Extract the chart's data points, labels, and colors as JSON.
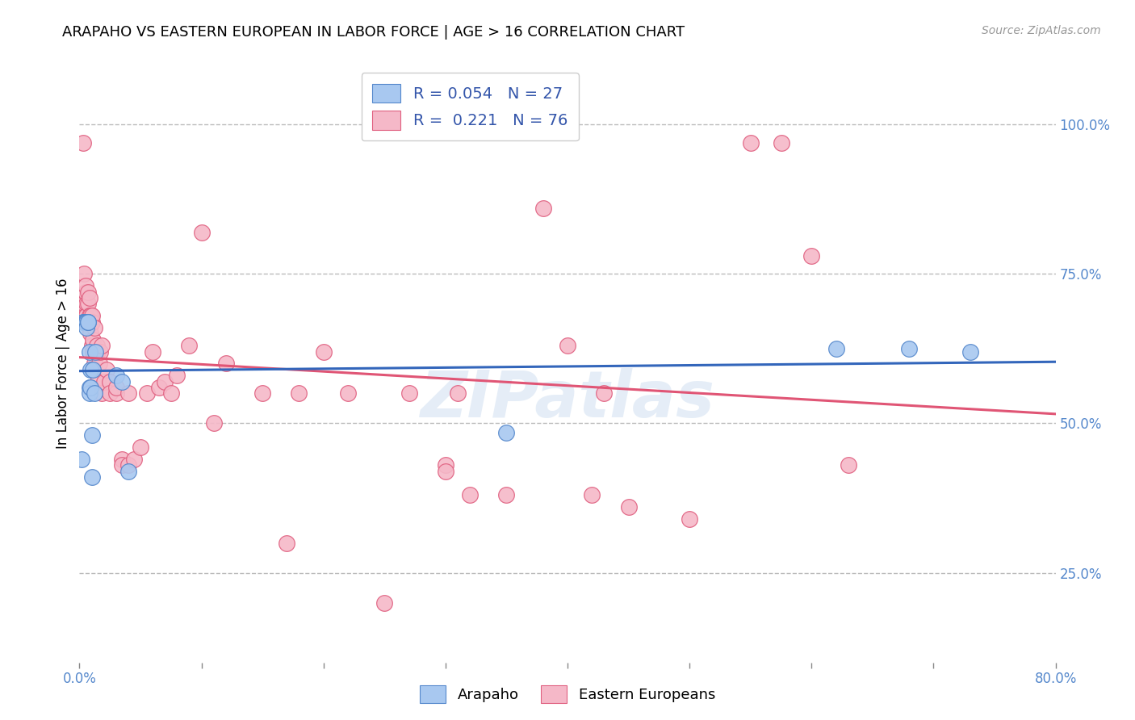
{
  "title": "ARAPAHO VS EASTERN EUROPEAN IN LABOR FORCE | AGE > 16 CORRELATION CHART",
  "source_text": "Source: ZipAtlas.com",
  "ylabel": "In Labor Force | Age > 16",
  "xlim": [
    0.0,
    0.8
  ],
  "ylim": [
    0.1,
    1.1
  ],
  "xticks": [
    0.0,
    0.1,
    0.2,
    0.3,
    0.4,
    0.5,
    0.6,
    0.7,
    0.8
  ],
  "yticks_right": [
    0.25,
    0.5,
    0.75,
    1.0
  ],
  "ytick_labels_right": [
    "25.0%",
    "50.0%",
    "75.0%",
    "100.0%"
  ],
  "grid_color": "#bbbbbb",
  "background_color": "#ffffff",
  "watermark": "ZIPatlas",
  "arapaho_color": "#a8c8f0",
  "eastern_color": "#f5b8c8",
  "arapaho_edge_color": "#5588cc",
  "eastern_edge_color": "#e06080",
  "arapaho_line_color": "#3366bb",
  "eastern_line_color": "#e05575",
  "title_color": "#000000",
  "title_fontsize": 13,
  "right_axis_color": "#5588cc",
  "legend_label_blue": "R = 0.054   N = 27",
  "legend_label_pink": "R =  0.221   N = 76",
  "arapaho_x": [
    0.002,
    0.003,
    0.004,
    0.004,
    0.005,
    0.005,
    0.006,
    0.006,
    0.007,
    0.007,
    0.008,
    0.008,
    0.008,
    0.009,
    0.009,
    0.01,
    0.01,
    0.011,
    0.012,
    0.013,
    0.03,
    0.035,
    0.04,
    0.35,
    0.62,
    0.68,
    0.73
  ],
  "arapaho_y": [
    0.44,
    0.67,
    0.67,
    0.67,
    0.67,
    0.67,
    0.67,
    0.66,
    0.67,
    0.67,
    0.62,
    0.56,
    0.55,
    0.59,
    0.56,
    0.48,
    0.41,
    0.59,
    0.55,
    0.62,
    0.58,
    0.57,
    0.42,
    0.485,
    0.625,
    0.625,
    0.62
  ],
  "eastern_x": [
    0.003,
    0.004,
    0.004,
    0.005,
    0.005,
    0.005,
    0.006,
    0.006,
    0.007,
    0.007,
    0.007,
    0.008,
    0.008,
    0.008,
    0.009,
    0.009,
    0.009,
    0.01,
    0.01,
    0.01,
    0.011,
    0.011,
    0.012,
    0.012,
    0.013,
    0.014,
    0.015,
    0.015,
    0.016,
    0.017,
    0.018,
    0.018,
    0.02,
    0.022,
    0.025,
    0.025,
    0.03,
    0.03,
    0.035,
    0.035,
    0.04,
    0.04,
    0.045,
    0.05,
    0.055,
    0.06,
    0.065,
    0.07,
    0.075,
    0.08,
    0.09,
    0.1,
    0.11,
    0.12,
    0.15,
    0.17,
    0.18,
    0.2,
    0.22,
    0.25,
    0.27,
    0.3,
    0.3,
    0.31,
    0.32,
    0.35,
    0.38,
    0.4,
    0.42,
    0.43,
    0.45,
    0.5,
    0.55,
    0.575,
    0.6,
    0.63
  ],
  "eastern_y": [
    0.97,
    0.7,
    0.75,
    0.72,
    0.68,
    0.73,
    0.7,
    0.68,
    0.7,
    0.72,
    0.67,
    0.68,
    0.71,
    0.66,
    0.68,
    0.67,
    0.65,
    0.67,
    0.68,
    0.63,
    0.62,
    0.64,
    0.66,
    0.6,
    0.62,
    0.63,
    0.62,
    0.57,
    0.6,
    0.62,
    0.63,
    0.55,
    0.57,
    0.59,
    0.57,
    0.55,
    0.55,
    0.56,
    0.44,
    0.43,
    0.55,
    0.43,
    0.44,
    0.46,
    0.55,
    0.62,
    0.56,
    0.57,
    0.55,
    0.58,
    0.63,
    0.82,
    0.5,
    0.6,
    0.55,
    0.3,
    0.55,
    0.62,
    0.55,
    0.2,
    0.55,
    0.43,
    0.42,
    0.55,
    0.38,
    0.38,
    0.86,
    0.63,
    0.38,
    0.55,
    0.36,
    0.34,
    0.97,
    0.97,
    0.78,
    0.43
  ]
}
